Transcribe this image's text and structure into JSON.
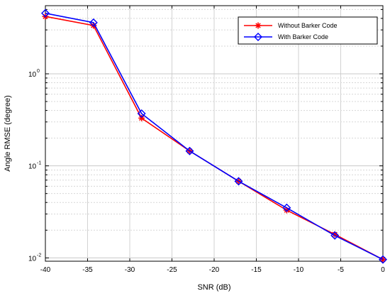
{
  "chart_data": {
    "type": "line",
    "title": "",
    "xlabel": "SNR (dB)",
    "ylabel": "Angle RMSE (degree)",
    "xlim": [
      -40,
      0
    ],
    "ylim": [
      0.0092,
      5.5
    ],
    "yscale": "log",
    "grid": true,
    "legend_position": "top-right",
    "x": [
      -40,
      -34.3,
      -28.6,
      -22.9,
      -17.1,
      -11.4,
      -5.7,
      0
    ],
    "x_ticks": [
      -40,
      -35,
      -30,
      -25,
      -20,
      -15,
      -10,
      -5,
      0
    ],
    "x_tick_labels": [
      "-40",
      "-35",
      "-30",
      "-25",
      "-20",
      "-15",
      "-10",
      "-5",
      "0"
    ],
    "y_ticks": [
      {
        "value": 1,
        "base": "10",
        "exp": "0"
      },
      {
        "value": 0.1,
        "base": "10",
        "exp": "-1"
      },
      {
        "value": 0.01,
        "base": "10",
        "exp": "-2"
      }
    ],
    "series": [
      {
        "name": "Without Barker Code",
        "color": "#ff0000",
        "marker": "asterisk",
        "values": [
          4.2,
          3.35,
          0.33,
          0.145,
          0.068,
          0.033,
          0.018,
          0.0096
        ]
      },
      {
        "name": "With Barker Code",
        "color": "#0000ff",
        "marker": "diamond",
        "values": [
          4.55,
          3.6,
          0.37,
          0.145,
          0.068,
          0.035,
          0.0175,
          0.0096
        ]
      }
    ]
  }
}
